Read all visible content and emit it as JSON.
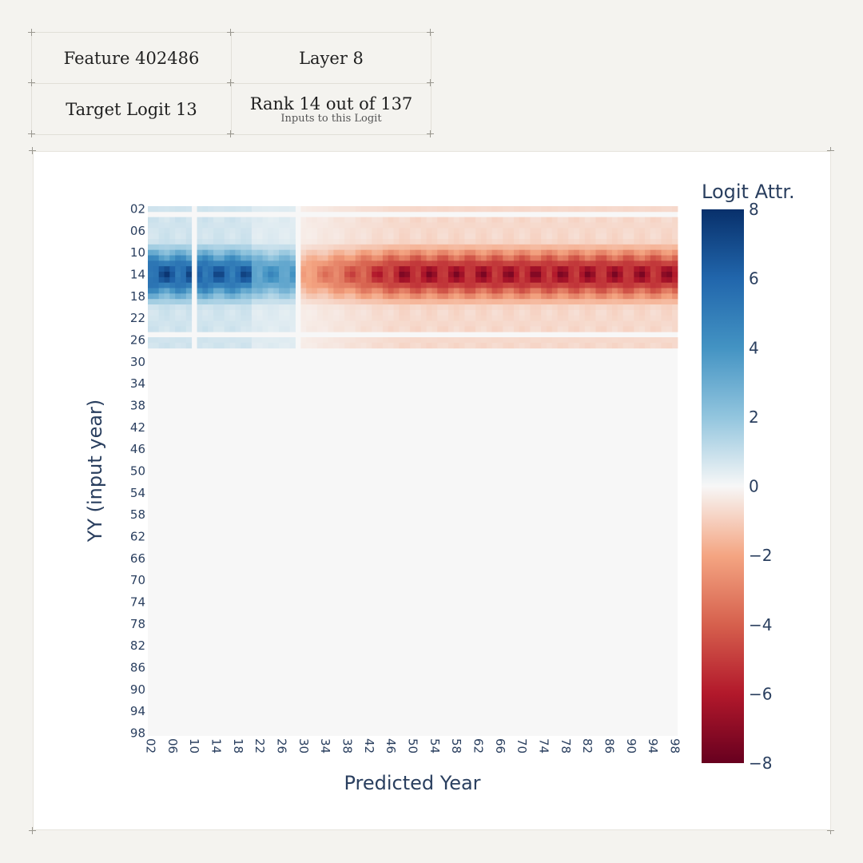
{
  "info": {
    "feature": "Feature 402486",
    "layer": "Layer 8",
    "target": "Target Logit 13",
    "rank": "Rank 14 out of 137",
    "rank_sub": "Inputs to this Logit"
  },
  "chart_data": {
    "type": "heatmap",
    "title": "",
    "xlabel": "Predicted Year",
    "ylabel": "YY (input year)",
    "colorbar_title": "Logit Attr.",
    "colorscale": "RdBu",
    "zlim": [
      -8,
      8
    ],
    "colorbar_ticks": [
      "8",
      "6",
      "4",
      "2",
      "0",
      "−2",
      "−4",
      "−6",
      "−8"
    ],
    "colorbar_tick_values": [
      8,
      6,
      4,
      2,
      0,
      -2,
      -4,
      -6,
      -8
    ],
    "x_range": [
      2,
      98
    ],
    "y_range": [
      2,
      98
    ],
    "x_tick_labels": [
      "02",
      "06",
      "10",
      "14",
      "18",
      "22",
      "26",
      "30",
      "34",
      "38",
      "42",
      "46",
      "50",
      "54",
      "58",
      "62",
      "66",
      "70",
      "74",
      "78",
      "82",
      "86",
      "90",
      "94",
      "98"
    ],
    "y_tick_labels": [
      "02",
      "06",
      "10",
      "14",
      "18",
      "22",
      "26",
      "30",
      "34",
      "38",
      "42",
      "46",
      "50",
      "54",
      "58",
      "62",
      "66",
      "70",
      "74",
      "78",
      "82",
      "86",
      "90",
      "94",
      "98"
    ],
    "nonzero_input_years": [
      2,
      27
    ],
    "blank_rows": [
      3,
      25
    ],
    "blank_cols": [
      10,
      29
    ],
    "positive_predicted_years": [
      2,
      28
    ],
    "negative_predicted_years": [
      30,
      98
    ],
    "peak_input_year": 14,
    "peak_positive_value": 7.8,
    "peak_negative_value": -7.5,
    "colors": {
      "positive_dark": "#08306b",
      "neutral": "#f7f7f7",
      "negative_dark": "#67001f",
      "axis_text": "#2a3f5f"
    }
  }
}
